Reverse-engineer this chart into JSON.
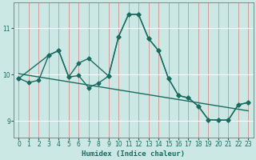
{
  "title": "",
  "xlabel": "Humidex (Indice chaleur)",
  "bg_color": "#cce8e4",
  "line_color": "#1a6b60",
  "xlim": [
    -0.5,
    23.5
  ],
  "ylim": [
    8.65,
    11.55
  ],
  "yticks": [
    9,
    10,
    11
  ],
  "xticks": [
    0,
    1,
    2,
    3,
    4,
    5,
    6,
    7,
    8,
    9,
    10,
    11,
    12,
    13,
    14,
    15,
    16,
    17,
    18,
    19,
    20,
    21,
    22,
    23
  ],
  "series1_x": [
    0,
    1,
    2,
    3,
    4,
    5,
    6,
    7,
    8,
    9,
    10,
    11,
    12,
    13,
    14,
    15,
    16,
    17,
    18,
    19,
    20,
    21,
    22,
    23
  ],
  "series1_y": [
    9.92,
    9.83,
    9.88,
    10.42,
    10.52,
    9.95,
    9.98,
    9.72,
    9.82,
    9.97,
    10.82,
    11.3,
    11.3,
    10.78,
    10.52,
    9.92,
    9.55,
    9.5,
    9.32,
    9.03,
    9.02,
    9.02,
    9.35,
    9.4
  ],
  "series2_x": [
    0,
    3,
    4,
    5,
    6,
    7,
    9,
    10,
    11,
    12,
    13,
    14,
    15,
    16,
    17,
    18,
    19,
    20,
    21,
    22,
    23
  ],
  "series2_y": [
    9.92,
    10.42,
    10.52,
    9.95,
    10.25,
    10.35,
    9.97,
    10.82,
    11.3,
    11.3,
    10.78,
    10.52,
    9.92,
    9.55,
    9.5,
    9.32,
    9.03,
    9.02,
    9.02,
    9.35,
    9.4
  ],
  "trend_x": [
    0,
    23
  ],
  "trend_y": [
    10.02,
    9.22
  ],
  "marker": "D",
  "marker_size": 2.5,
  "linewidth": 1.0
}
